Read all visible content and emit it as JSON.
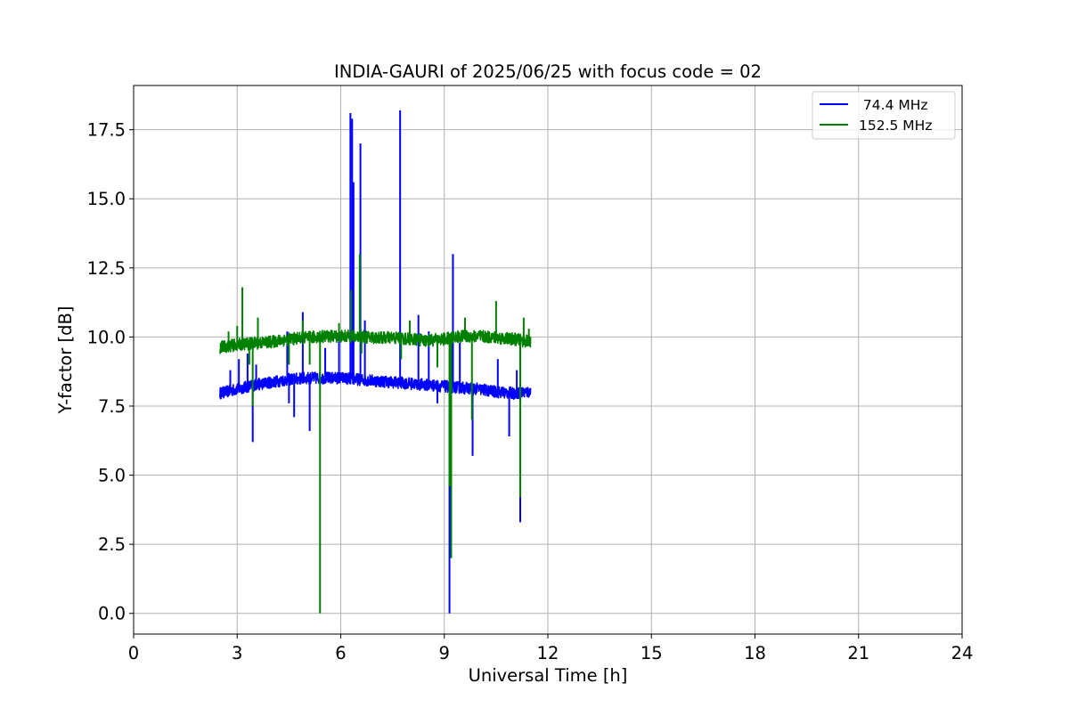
{
  "chart_data": {
    "type": "line",
    "title": "INDIA-GAURI of 2025/06/25 with focus code = 02",
    "xlabel": "Universal Time [h]",
    "ylabel": "Y-factor [dB]",
    "xlim": [
      0,
      24
    ],
    "ylim": [
      -0.75,
      19.1
    ],
    "xticks": [
      0,
      3,
      6,
      9,
      12,
      15,
      18,
      21,
      24
    ],
    "xtick_labels": [
      "0",
      "3",
      "6",
      "9",
      "12",
      "15",
      "18",
      "21",
      "24"
    ],
    "yticks": [
      0.0,
      2.5,
      5.0,
      7.5,
      10.0,
      12.5,
      15.0,
      17.5
    ],
    "ytick_labels": [
      "0.0",
      "2.5",
      "5.0",
      "7.5",
      "10.0",
      "12.5",
      "15.0",
      "17.5"
    ],
    "grid": true,
    "legend_position": "upper right",
    "series": [
      {
        "name": " 74.4 MHz",
        "color": "#0000ff",
        "band": [
          0.25,
          0.18
        ],
        "x": [
          2.5,
          3.0,
          3.5,
          4.0,
          4.5,
          5.0,
          5.5,
          6.0,
          6.5,
          7.0,
          7.5,
          8.0,
          8.5,
          9.0,
          9.5,
          10.0,
          10.5,
          11.0,
          11.5
        ],
        "y": [
          8.0,
          8.15,
          8.3,
          8.4,
          8.5,
          8.55,
          8.55,
          8.55,
          8.5,
          8.45,
          8.4,
          8.35,
          8.3,
          8.25,
          8.2,
          8.15,
          8.05,
          8.0,
          8.05
        ],
        "spikes": [
          {
            "x": 2.8,
            "y": 8.8
          },
          {
            "x": 3.05,
            "y": 9.2
          },
          {
            "x": 3.3,
            "y": 9.4
          },
          {
            "x": 3.45,
            "y": 6.2
          },
          {
            "x": 3.55,
            "y": 9.0
          },
          {
            "x": 4.45,
            "y": 10.2
          },
          {
            "x": 4.5,
            "y": 7.6
          },
          {
            "x": 4.65,
            "y": 7.1
          },
          {
            "x": 4.9,
            "y": 10.9
          },
          {
            "x": 5.1,
            "y": 6.6
          },
          {
            "x": 5.55,
            "y": 9.6
          },
          {
            "x": 5.95,
            "y": 10.1
          },
          {
            "x": 6.28,
            "y": 18.1
          },
          {
            "x": 6.33,
            "y": 17.9
          },
          {
            "x": 6.37,
            "y": 15.6
          },
          {
            "x": 6.57,
            "y": 17.0
          },
          {
            "x": 6.7,
            "y": 10.6
          },
          {
            "x": 7.72,
            "y": 18.2
          },
          {
            "x": 8.25,
            "y": 10.8
          },
          {
            "x": 8.55,
            "y": 10.2
          },
          {
            "x": 8.8,
            "y": 7.6
          },
          {
            "x": 9.15,
            "y": 0.0
          },
          {
            "x": 9.25,
            "y": 13.0
          },
          {
            "x": 9.45,
            "y": 9.8
          },
          {
            "x": 9.82,
            "y": 5.7
          },
          {
            "x": 10.55,
            "y": 9.2
          },
          {
            "x": 10.88,
            "y": 6.4
          },
          {
            "x": 11.1,
            "y": 8.8
          },
          {
            "x": 11.2,
            "y": 3.3
          }
        ]
      },
      {
        "name": "152.5 MHz",
        "color": "#008000",
        "band": [
          0.25,
          0.2
        ],
        "x": [
          2.5,
          3.0,
          3.5,
          4.0,
          4.5,
          5.0,
          5.5,
          6.0,
          6.5,
          7.0,
          7.5,
          8.0,
          8.5,
          9.0,
          9.5,
          10.0,
          10.5,
          11.0,
          11.5
        ],
        "y": [
          9.65,
          9.75,
          9.8,
          9.85,
          9.95,
          10.0,
          10.05,
          10.05,
          10.05,
          10.0,
          10.0,
          9.95,
          9.9,
          9.95,
          10.05,
          10.05,
          10.0,
          9.95,
          9.85
        ],
        "spikes": [
          {
            "x": 2.75,
            "y": 10.2
          },
          {
            "x": 3.0,
            "y": 10.4
          },
          {
            "x": 3.15,
            "y": 11.8
          },
          {
            "x": 3.35,
            "y": 9.0
          },
          {
            "x": 3.45,
            "y": 7.5
          },
          {
            "x": 3.6,
            "y": 10.7
          },
          {
            "x": 4.5,
            "y": 9.0
          },
          {
            "x": 4.9,
            "y": 10.6
          },
          {
            "x": 5.1,
            "y": 9.0
          },
          {
            "x": 5.4,
            "y": 0.0
          },
          {
            "x": 5.95,
            "y": 10.5
          },
          {
            "x": 6.3,
            "y": 11.7
          },
          {
            "x": 6.55,
            "y": 13.0
          },
          {
            "x": 6.6,
            "y": 9.4
          },
          {
            "x": 7.75,
            "y": 9.2
          },
          {
            "x": 8.0,
            "y": 10.6
          },
          {
            "x": 8.8,
            "y": 8.9
          },
          {
            "x": 9.15,
            "y": 4.6
          },
          {
            "x": 9.2,
            "y": 2.0
          },
          {
            "x": 9.6,
            "y": 10.7
          },
          {
            "x": 9.8,
            "y": 7.0
          },
          {
            "x": 10.5,
            "y": 11.3
          },
          {
            "x": 11.2,
            "y": 4.2
          },
          {
            "x": 11.3,
            "y": 10.7
          },
          {
            "x": 11.45,
            "y": 10.3
          }
        ]
      }
    ]
  }
}
